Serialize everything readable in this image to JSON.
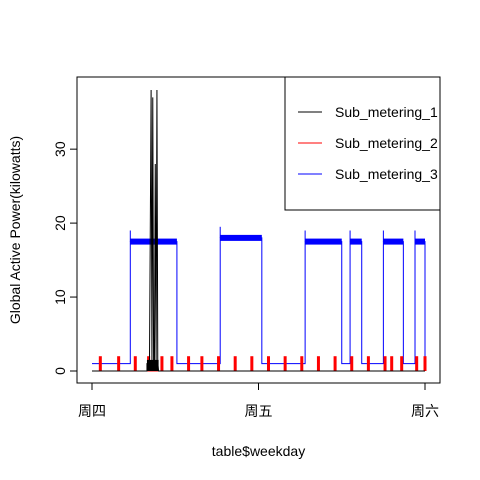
{
  "chart_data": {
    "type": "line",
    "title": "",
    "xlabel": "table$weekday",
    "ylabel": "Global Active Power(kilowatts)",
    "x_tick_labels": [
      "周四",
      "周五",
      "周六"
    ],
    "x_tick_days": [
      0,
      1,
      2
    ],
    "ylim": [
      0,
      38
    ],
    "y_ticks": [
      0,
      10,
      20,
      30
    ],
    "grid": false,
    "legend_position": "top-right",
    "series": [
      {
        "name": "Sub_metering_1",
        "color": "#000000",
        "points": [
          [
            0.0,
            0
          ],
          [
            0.33,
            0
          ],
          [
            0.33,
            1
          ],
          [
            0.34,
            1
          ],
          [
            0.34,
            0
          ],
          [
            0.34,
            1
          ],
          [
            0.345,
            1
          ],
          [
            0.345,
            0
          ],
          [
            0.355,
            38
          ],
          [
            0.36,
            1
          ],
          [
            0.365,
            37
          ],
          [
            0.37,
            1
          ],
          [
            0.375,
            1
          ],
          [
            0.38,
            28
          ],
          [
            0.385,
            1
          ],
          [
            0.39,
            38
          ],
          [
            0.395,
            1
          ],
          [
            0.4,
            0
          ],
          [
            1.0,
            0
          ],
          [
            2.0,
            0
          ]
        ]
      },
      {
        "name": "Sub_metering_2",
        "color": "#ff0000",
        "spikes": [
          0.05,
          0.16,
          0.26,
          0.34,
          0.42,
          0.48,
          0.58,
          0.66,
          0.76,
          0.86,
          0.96,
          1.06,
          1.16,
          1.26,
          1.36,
          1.46,
          1.56,
          1.66,
          1.76,
          1.8,
          1.86,
          1.95,
          2.0
        ],
        "spike_height": 2,
        "baseline": 0
      },
      {
        "name": "Sub_metering_3",
        "color": "#0000ff",
        "blocks": [
          {
            "start": 0.23,
            "end": 0.51,
            "level": 17.5
          },
          {
            "start": 0.77,
            "end": 1.02,
            "level": 18
          },
          {
            "start": 1.28,
            "end": 1.5,
            "level": 17.5
          },
          {
            "start": 1.55,
            "end": 1.62,
            "level": 17.5
          },
          {
            "start": 1.75,
            "end": 1.87,
            "level": 17.5
          },
          {
            "start": 1.94,
            "end": 2.0,
            "level": 17.5
          }
        ],
        "baseline": 1
      }
    ]
  }
}
